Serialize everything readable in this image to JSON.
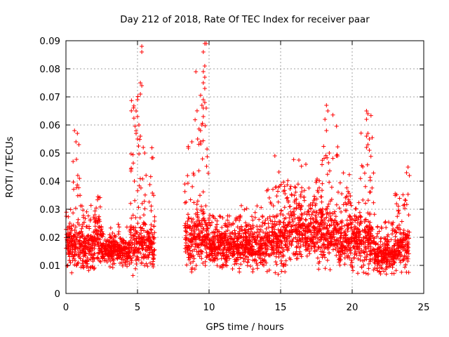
{
  "chart_data": {
    "type": "scatter",
    "title": "Day 212 of 2018, Rate Of TEC Index for receiver paar",
    "xlabel": "GPS time / hours",
    "ylabel": "ROTI / TECUs",
    "xlim": [
      0,
      25
    ],
    "ylim": [
      0,
      0.09
    ],
    "x_ticks": [
      "0",
      "5",
      "10",
      "15",
      "20",
      "25"
    ],
    "y_ticks": [
      "0",
      "0.01",
      "0.02",
      "0.03",
      "0.04",
      "0.05",
      "0.06",
      "0.07",
      "0.08",
      "0.09"
    ],
    "grid": true,
    "marker": "+",
    "color": "#ff0000",
    "data_gap_hours": [
      6.2,
      8.3
    ],
    "density_profile": [
      {
        "x0": 0.0,
        "x1": 0.5,
        "base": 0.017,
        "spread": 0.009,
        "peak": 0.039
      },
      {
        "x0": 0.5,
        "x1": 1.0,
        "base": 0.017,
        "spread": 0.01,
        "peak": 0.058
      },
      {
        "x0": 1.0,
        "x1": 2.0,
        "base": 0.016,
        "spread": 0.008,
        "peak": 0.038
      },
      {
        "x0": 2.0,
        "x1": 2.5,
        "base": 0.02,
        "spread": 0.009,
        "peak": 0.041
      },
      {
        "x0": 2.5,
        "x1": 4.5,
        "base": 0.015,
        "spread": 0.005,
        "peak": 0.025
      },
      {
        "x0": 4.5,
        "x1": 5.2,
        "base": 0.018,
        "spread": 0.01,
        "peak": 0.088
      },
      {
        "x0": 5.2,
        "x1": 6.2,
        "base": 0.017,
        "spread": 0.008,
        "peak": 0.053
      },
      {
        "x0": 8.3,
        "x1": 9.0,
        "base": 0.018,
        "spread": 0.01,
        "peak": 0.054
      },
      {
        "x0": 9.0,
        "x1": 10.0,
        "base": 0.02,
        "spread": 0.011,
        "peak": 0.089
      },
      {
        "x0": 10.0,
        "x1": 14.0,
        "base": 0.016,
        "spread": 0.007,
        "peak": 0.033
      },
      {
        "x0": 14.0,
        "x1": 15.5,
        "base": 0.018,
        "spread": 0.01,
        "peak": 0.049
      },
      {
        "x0": 15.5,
        "x1": 18.0,
        "base": 0.022,
        "spread": 0.011,
        "peak": 0.049
      },
      {
        "x0": 18.0,
        "x1": 19.0,
        "base": 0.02,
        "spread": 0.01,
        "peak": 0.067
      },
      {
        "x0": 19.0,
        "x1": 20.5,
        "base": 0.018,
        "spread": 0.009,
        "peak": 0.046
      },
      {
        "x0": 20.5,
        "x1": 21.5,
        "base": 0.018,
        "spread": 0.01,
        "peak": 0.065
      },
      {
        "x0": 21.5,
        "x1": 23.0,
        "base": 0.013,
        "spread": 0.006,
        "peak": 0.031
      },
      {
        "x0": 23.0,
        "x1": 24.0,
        "base": 0.016,
        "spread": 0.008,
        "peak": 0.045
      }
    ],
    "highlight_points": [
      {
        "x": 0.6,
        "y": 0.058
      },
      {
        "x": 0.8,
        "y": 0.057
      },
      {
        "x": 0.7,
        "y": 0.054
      },
      {
        "x": 0.9,
        "y": 0.053
      },
      {
        "x": 0.5,
        "y": 0.047
      },
      {
        "x": 5.3,
        "y": 0.088
      },
      {
        "x": 5.3,
        "y": 0.086
      },
      {
        "x": 5.2,
        "y": 0.075
      },
      {
        "x": 5.3,
        "y": 0.074
      },
      {
        "x": 5.2,
        "y": 0.071
      },
      {
        "x": 5.0,
        "y": 0.069
      },
      {
        "x": 4.9,
        "y": 0.065
      },
      {
        "x": 5.0,
        "y": 0.063
      },
      {
        "x": 5.1,
        "y": 0.06
      },
      {
        "x": 4.9,
        "y": 0.057
      },
      {
        "x": 5.2,
        "y": 0.056
      },
      {
        "x": 5.0,
        "y": 0.055
      },
      {
        "x": 5.4,
        "y": 0.052
      },
      {
        "x": 5.5,
        "y": 0.05
      },
      {
        "x": 9.7,
        "y": 0.089
      },
      {
        "x": 9.8,
        "y": 0.089
      },
      {
        "x": 9.6,
        "y": 0.086
      },
      {
        "x": 9.7,
        "y": 0.081
      },
      {
        "x": 9.6,
        "y": 0.079
      },
      {
        "x": 9.7,
        "y": 0.077
      },
      {
        "x": 9.6,
        "y": 0.075
      },
      {
        "x": 9.7,
        "y": 0.073
      },
      {
        "x": 9.6,
        "y": 0.069
      },
      {
        "x": 9.7,
        "y": 0.068
      },
      {
        "x": 9.5,
        "y": 0.067
      },
      {
        "x": 9.6,
        "y": 0.066
      },
      {
        "x": 9.8,
        "y": 0.066
      },
      {
        "x": 9.6,
        "y": 0.063
      },
      {
        "x": 9.5,
        "y": 0.06
      },
      {
        "x": 9.4,
        "y": 0.058
      },
      {
        "x": 9.2,
        "y": 0.055
      },
      {
        "x": 9.4,
        "y": 0.054
      },
      {
        "x": 8.8,
        "y": 0.054
      },
      {
        "x": 14.6,
        "y": 0.049
      },
      {
        "x": 18.2,
        "y": 0.067
      },
      {
        "x": 18.3,
        "y": 0.065
      },
      {
        "x": 18.1,
        "y": 0.062
      },
      {
        "x": 18.2,
        "y": 0.058
      },
      {
        "x": 18.4,
        "y": 0.05
      },
      {
        "x": 18.9,
        "y": 0.049
      },
      {
        "x": 21.0,
        "y": 0.065
      },
      {
        "x": 21.1,
        "y": 0.064
      },
      {
        "x": 21.0,
        "y": 0.062
      },
      {
        "x": 21.1,
        "y": 0.057
      },
      {
        "x": 21.0,
        "y": 0.056
      },
      {
        "x": 21.2,
        "y": 0.055
      },
      {
        "x": 21.1,
        "y": 0.053
      },
      {
        "x": 21.0,
        "y": 0.052
      },
      {
        "x": 21.2,
        "y": 0.051
      },
      {
        "x": 23.9,
        "y": 0.045
      },
      {
        "x": 23.8,
        "y": 0.043
      },
      {
        "x": 24.0,
        "y": 0.042
      }
    ]
  }
}
